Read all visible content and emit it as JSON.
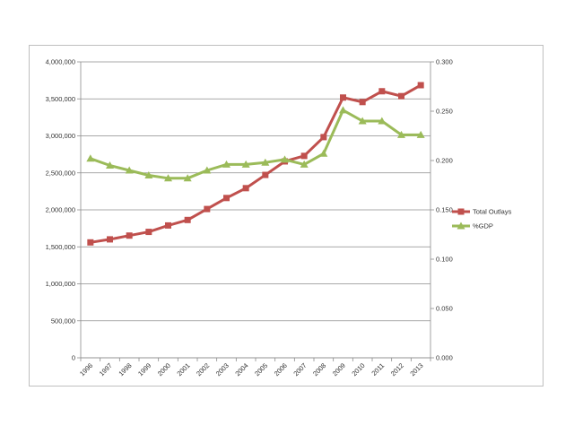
{
  "chart_data": {
    "type": "line",
    "title": "",
    "xlabel": "",
    "ylabel": "",
    "categories": [
      "1996",
      "1997",
      "1998",
      "1999",
      "2000",
      "2001",
      "2002",
      "2003",
      "2004",
      "2005",
      "2006",
      "2007",
      "2008",
      "2009",
      "2010",
      "2011",
      "2012",
      "2013"
    ],
    "y_left": {
      "min": 0,
      "max": 4000000,
      "step": 500000,
      "tick_labels": [
        "0",
        "500,000",
        "1,000,000",
        "1,500,000",
        "2,000,000",
        "2,500,000",
        "3,000,000",
        "3,500,000",
        "4,000,000"
      ]
    },
    "y_right": {
      "min": 0,
      "max": 0.3,
      "step": 0.05,
      "tick_labels": [
        "0.000",
        "0.050",
        "0.100",
        "0.150",
        "0.200",
        "0.250",
        "0.300"
      ]
    },
    "grid": "horizontal",
    "legend_position": "right",
    "series": [
      {
        "name": "Total Outlays",
        "axis": "left",
        "color": "#c0504d",
        "marker": "square",
        "values": [
          1560000,
          1601000,
          1652000,
          1702000,
          1789000,
          1863000,
          2011000,
          2160000,
          2293000,
          2472000,
          2655000,
          2729000,
          2983000,
          3518000,
          3457000,
          3603000,
          3537000,
          3685000
        ]
      },
      {
        "name": "%GDP",
        "axis": "right",
        "color": "#9bbb59",
        "marker": "triangle",
        "values": [
          0.202,
          0.195,
          0.19,
          0.185,
          0.182,
          0.182,
          0.19,
          0.196,
          0.196,
          0.198,
          0.201,
          0.196,
          0.207,
          0.251,
          0.24,
          0.24,
          0.226,
          0.226
        ]
      }
    ]
  }
}
